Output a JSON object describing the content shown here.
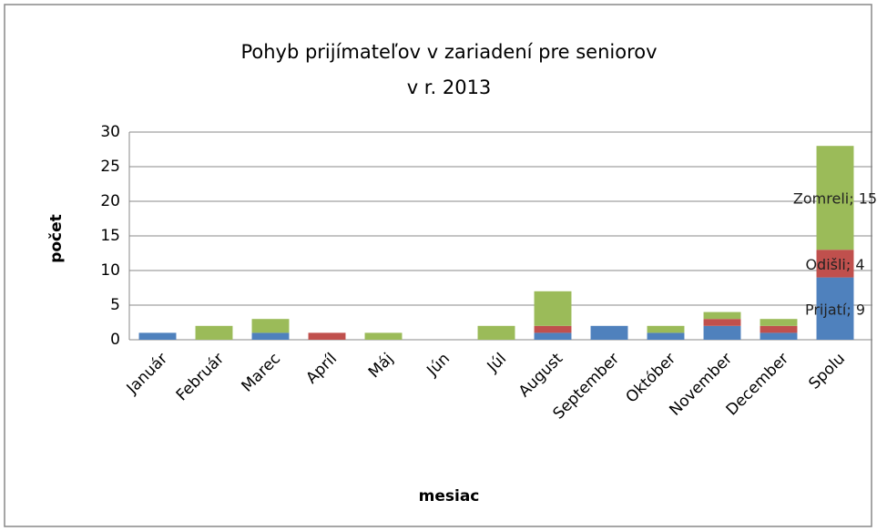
{
  "chart_data": {
    "type": "stacked_bar",
    "title": [
      "Pohyb prijímateľov v zariadení pre seniorov",
      "v r. 2013"
    ],
    "x_label": "mesiac",
    "y_label": "počet",
    "categories": [
      "Január",
      "Február",
      "Marec",
      "Apríl",
      "Máj",
      "Jún",
      "Júl",
      "August",
      "September",
      "Október",
      "November",
      "December",
      "Spolu"
    ],
    "series": [
      {
        "name": "Prijatí",
        "color": "#4f81bd",
        "values": [
          1,
          0,
          1,
          0,
          0,
          0,
          0,
          1,
          2,
          1,
          2,
          1,
          9
        ],
        "value_labels": [
          null,
          null,
          null,
          null,
          null,
          null,
          null,
          null,
          null,
          null,
          null,
          null,
          "Prijatí; 9"
        ]
      },
      {
        "name": "Odišli",
        "color": "#c0504d",
        "values": [
          0,
          0,
          0,
          1,
          0,
          0,
          0,
          1,
          0,
          0,
          1,
          1,
          4
        ],
        "value_labels": [
          null,
          null,
          null,
          null,
          null,
          null,
          null,
          null,
          null,
          null,
          null,
          null,
          "Odišli; 4"
        ]
      },
      {
        "name": "Zomreli",
        "color": "#9bbb59",
        "values": [
          0,
          2,
          2,
          0,
          1,
          0,
          2,
          5,
          0,
          1,
          1,
          1,
          15
        ],
        "value_labels": [
          null,
          null,
          null,
          null,
          null,
          null,
          null,
          null,
          null,
          null,
          null,
          null,
          "Zomreli; 15"
        ]
      }
    ],
    "ylim": [
      0,
      30
    ],
    "yticks": [
      0,
      5,
      10,
      15,
      20,
      25,
      30
    ],
    "grid": true
  }
}
